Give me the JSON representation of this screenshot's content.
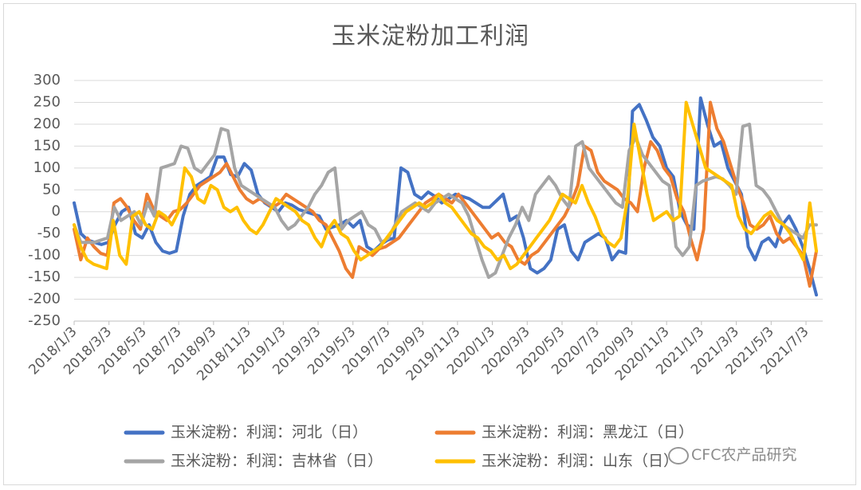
{
  "chart_data": {
    "type": "line",
    "title": "玉米淀粉加工利润",
    "xlabel": "",
    "ylabel": "",
    "ylim": [
      -250,
      300
    ],
    "yticks": [
      300,
      250,
      200,
      150,
      100,
      50,
      0,
      -50,
      -100,
      -150,
      -200,
      -250
    ],
    "x_tick_labels": [
      "2018/1/3",
      "2018/3/3",
      "2018/5/3",
      "2018/7/3",
      "2018/9/3",
      "2018/11/3",
      "2019/1/3",
      "2019/3/3",
      "2019/5/3",
      "2019/7/3",
      "2019/9/3",
      "2019/11/3",
      "2020/1/3",
      "2020/3/3",
      "2020/5/3",
      "2020/7/3",
      "2020/9/3",
      "2020/11/3",
      "2021/1/3",
      "2021/3/3",
      "2021/5/3",
      "2021/7/3"
    ],
    "grid": true,
    "legend_position": "bottom",
    "series": [
      {
        "name": "玉米淀粉：利润：河北（日）",
        "color": "#4472C4",
        "values": [
          20,
          -50,
          -65,
          -70,
          -75,
          -70,
          -30,
          0,
          10,
          -50,
          -60,
          -30,
          -70,
          -90,
          -95,
          -90,
          -10,
          40,
          60,
          70,
          80,
          125,
          125,
          85,
          80,
          110,
          95,
          40,
          20,
          10,
          0,
          20,
          15,
          5,
          0,
          -5,
          -10,
          -40,
          -35,
          -30,
          -20,
          -35,
          -20,
          -80,
          -90,
          -75,
          -65,
          -60,
          100,
          90,
          40,
          30,
          45,
          35,
          20,
          30,
          40,
          35,
          30,
          20,
          10,
          10,
          25,
          40,
          -20,
          -10,
          -60,
          -130,
          -140,
          -130,
          -110,
          -40,
          -30,
          -90,
          -110,
          -70,
          -60,
          -50,
          -60,
          -110,
          -90,
          -95,
          230,
          245,
          210,
          170,
          150,
          100,
          80,
          0,
          -30,
          -40,
          260,
          200,
          150,
          160,
          100,
          70,
          40,
          -80,
          -110,
          -70,
          -60,
          -80,
          -30,
          -10,
          -40,
          -80,
          -130,
          -190
        ]
      },
      {
        "name": "玉米淀粉：利润：黑龙江（日）",
        "color": "#ED7D31",
        "values": [
          -40,
          -110,
          -60,
          -80,
          -95,
          -100,
          20,
          30,
          10,
          -20,
          -40,
          40,
          5,
          -10,
          -20,
          0,
          5,
          20,
          40,
          60,
          70,
          80,
          90,
          110,
          80,
          50,
          30,
          20,
          30,
          20,
          10,
          20,
          40,
          30,
          20,
          10,
          0,
          -20,
          -30,
          -60,
          -90,
          -130,
          -150,
          -80,
          -90,
          -100,
          -85,
          -80,
          -70,
          -60,
          -40,
          -20,
          0,
          20,
          30,
          40,
          30,
          20,
          40,
          20,
          0,
          -20,
          -40,
          -60,
          -50,
          -70,
          -80,
          -110,
          -120,
          -100,
          -90,
          -70,
          -50,
          -30,
          -10,
          20,
          60,
          150,
          140,
          90,
          70,
          60,
          50,
          30,
          20,
          0,
          100,
          160,
          140,
          100,
          80,
          30,
          0,
          -60,
          -110,
          -40,
          250,
          190,
          160,
          110,
          60,
          20,
          -30,
          -40,
          -30,
          -10,
          -50,
          -70,
          -60,
          -80,
          -100,
          -170,
          -90
        ]
      },
      {
        "name": "玉米淀粉：利润：吉林省（日）",
        "color": "#A5A5A5",
        "values": [
          -30,
          -70,
          -70,
          -70,
          -65,
          -60,
          10,
          -20,
          -10,
          0,
          -30,
          20,
          -10,
          100,
          105,
          110,
          150,
          145,
          100,
          90,
          110,
          130,
          190,
          185,
          100,
          60,
          50,
          40,
          30,
          20,
          10,
          -20,
          -40,
          -30,
          -10,
          10,
          40,
          60,
          90,
          100,
          -40,
          -20,
          -10,
          0,
          -30,
          -40,
          -70,
          -60,
          -30,
          0,
          10,
          20,
          10,
          0,
          20,
          30,
          40,
          30,
          20,
          -10,
          -60,
          -110,
          -150,
          -140,
          -100,
          -60,
          -30,
          10,
          -20,
          40,
          60,
          80,
          60,
          30,
          10,
          150,
          160,
          100,
          80,
          60,
          40,
          20,
          10,
          140,
          170,
          130,
          110,
          90,
          70,
          60,
          -80,
          -100,
          -80,
          60,
          70,
          75,
          80,
          75,
          60,
          40,
          195,
          200,
          60,
          50,
          30,
          0,
          -30,
          -40,
          -50,
          -60,
          -30,
          -30
        ]
      },
      {
        "name": "玉米淀粉：利润：山东（日）",
        "color": "#FFC000",
        "values": [
          -30,
          -80,
          -110,
          -120,
          -125,
          -130,
          -20,
          -100,
          -120,
          -10,
          0,
          -30,
          -40,
          0,
          -10,
          -30,
          0,
          100,
          80,
          30,
          20,
          60,
          50,
          10,
          0,
          10,
          -20,
          -40,
          -50,
          -30,
          0,
          30,
          20,
          10,
          0,
          -20,
          -30,
          -60,
          -80,
          -40,
          -20,
          -50,
          -60,
          -90,
          -110,
          -100,
          -90,
          -80,
          -60,
          -40,
          -20,
          0,
          10,
          20,
          10,
          20,
          40,
          20,
          10,
          -10,
          -30,
          -50,
          -60,
          -80,
          -90,
          -110,
          -100,
          -130,
          -120,
          -100,
          -80,
          -60,
          -40,
          -20,
          10,
          40,
          30,
          20,
          60,
          20,
          -10,
          -50,
          -70,
          -80,
          -60,
          30,
          200,
          120,
          40,
          -20,
          -10,
          0,
          -20,
          -10,
          250,
          200,
          150,
          100,
          90,
          80,
          70,
          60,
          -10,
          -40,
          -50,
          -30,
          -10,
          0,
          -20,
          -30,
          -50,
          -80,
          -110,
          20,
          -90
        ]
      }
    ]
  },
  "watermark": "CFC农产品研究"
}
